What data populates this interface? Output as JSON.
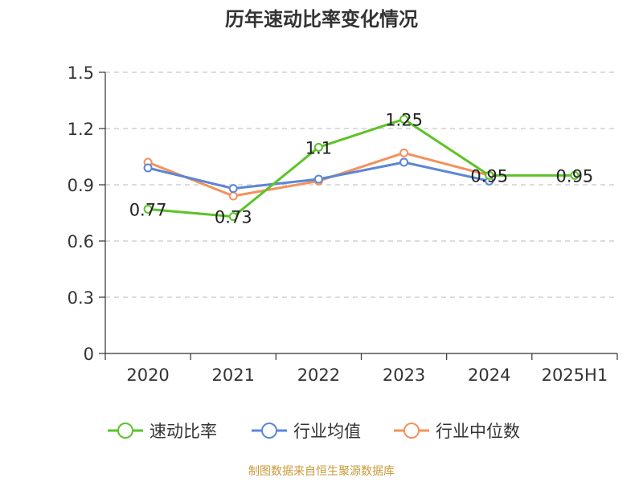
{
  "title": "历年速动比率变化情况",
  "source": "制图数据来自恒生聚源数据库",
  "chart_data": {
    "type": "line",
    "categories": [
      "2020",
      "2021",
      "2022",
      "2023",
      "2024",
      "2025H1"
    ],
    "ylim": [
      0,
      1.5
    ],
    "yticks": [
      0,
      0.3,
      0.6,
      0.9,
      1.2,
      1.5
    ],
    "ytick_labels": [
      "0",
      "0.3",
      "0.6",
      "0.9",
      "1.2",
      "1.5"
    ],
    "grid": true,
    "legend_position": "bottom",
    "series": [
      {
        "name": "速动比率",
        "color": "#5cc328",
        "values": [
          0.77,
          0.73,
          1.1,
          1.25,
          0.95,
          0.95
        ],
        "labels": [
          "0.77",
          "0.73",
          "1.1",
          "1.25",
          "0.95",
          "0.95"
        ]
      },
      {
        "name": "行业均值",
        "color": "#5b86d8",
        "values": [
          0.99,
          0.88,
          0.93,
          1.02,
          0.92,
          null
        ]
      },
      {
        "name": "行业中位数",
        "color": "#f4915b",
        "values": [
          1.02,
          0.84,
          0.92,
          1.07,
          0.95,
          null
        ]
      }
    ]
  }
}
